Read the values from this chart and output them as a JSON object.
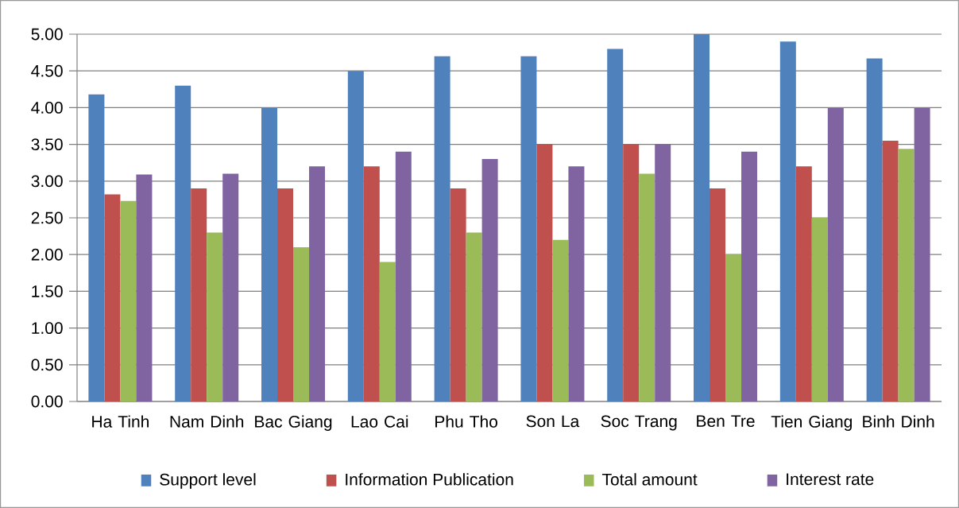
{
  "chart_data": {
    "type": "bar",
    "categories": [
      "Ha Tinh",
      "Nam Dinh",
      "Bac Giang",
      "Lao Cai",
      "Phu Tho",
      "Son La",
      "Soc Trang",
      "Ben Tre",
      "Tien Giang",
      "Binh Dinh"
    ],
    "series": [
      {
        "name": "Support level",
        "color": "#4f81bd",
        "values": [
          4.18,
          4.3,
          4.0,
          4.5,
          4.7,
          4.7,
          4.8,
          5.0,
          4.9,
          4.67
        ]
      },
      {
        "name": "Information Publication",
        "color": "#c0504d",
        "values": [
          2.82,
          2.9,
          2.9,
          3.2,
          2.9,
          3.5,
          3.5,
          2.9,
          3.2,
          3.55
        ]
      },
      {
        "name": "Total amount",
        "color": "#9bbb59",
        "values": [
          2.73,
          2.3,
          2.1,
          1.9,
          2.3,
          2.2,
          3.1,
          2.0,
          2.5,
          3.44
        ]
      },
      {
        "name": "Interest rate",
        "color": "#8064a2",
        "values": [
          3.09,
          3.1,
          3.2,
          3.4,
          3.3,
          3.2,
          3.5,
          3.4,
          4.0,
          4.0
        ]
      }
    ],
    "ylim": [
      0,
      5
    ],
    "yticks": [
      {
        "value": 0,
        "label": "0.00"
      },
      {
        "value": 0.5,
        "label": "0.50"
      },
      {
        "value": 1,
        "label": "1.00"
      },
      {
        "value": 1.5,
        "label": "1.50"
      },
      {
        "value": 2,
        "label": "2.00"
      },
      {
        "value": 2.5,
        "label": "2.50"
      },
      {
        "value": 3,
        "label": "3.00"
      },
      {
        "value": 3.5,
        "label": "3.50"
      },
      {
        "value": 4,
        "label": "4.00"
      },
      {
        "value": 4.5,
        "label": "4.50"
      },
      {
        "value": 5,
        "label": "5.00"
      }
    ],
    "grid": "y",
    "legend": "bottom"
  }
}
